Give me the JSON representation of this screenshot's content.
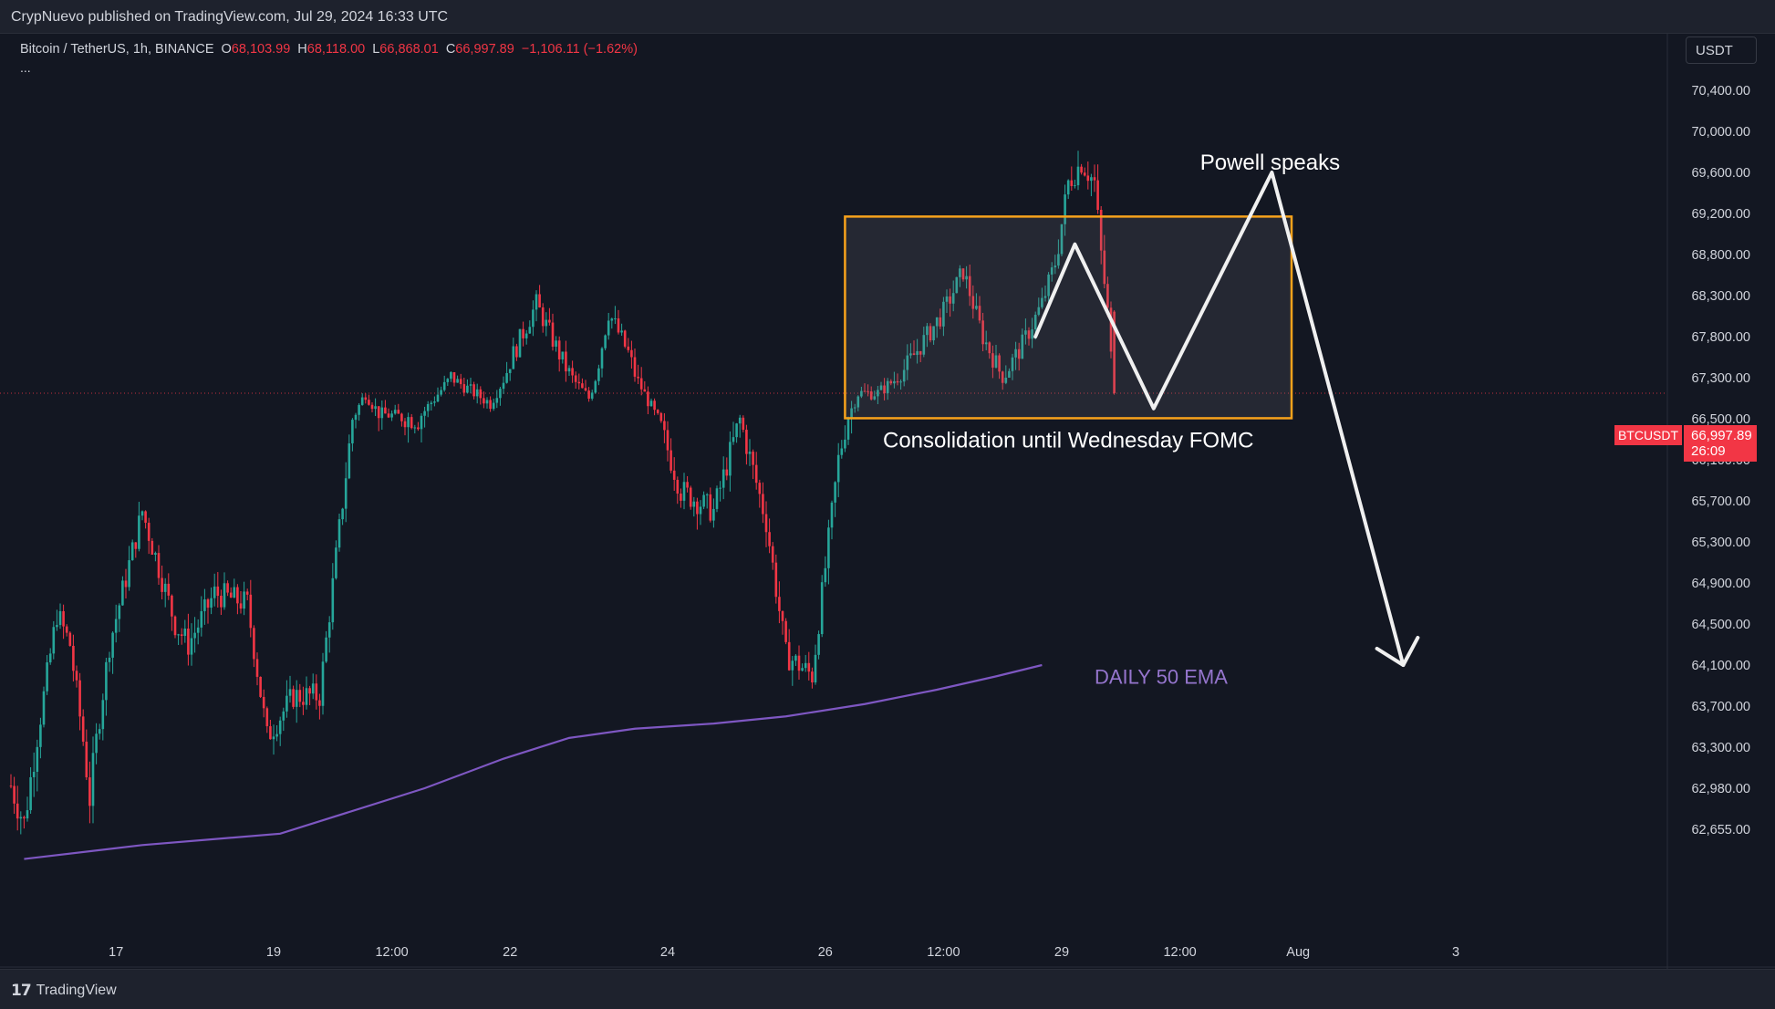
{
  "header": {
    "published": "CrypNuevo published on TradingView.com, Jul 29, 2024 16:33 UTC"
  },
  "legend": {
    "symbol": "Bitcoin / TetherUS, 1h, BINANCE",
    "o_label": "O",
    "o_value": "68,103.99",
    "h_label": "H",
    "h_value": "68,118.00",
    "l_label": "L",
    "l_value": "66,868.01",
    "c_label": "C",
    "c_value": "66,997.89",
    "change": "−1,106.11 (−1.62%)",
    "more": "..."
  },
  "currency_button": "USDT",
  "price_tag": {
    "symbol": "BTCUSDT",
    "price": "66,997.89",
    "countdown": "26:09"
  },
  "footer": {
    "logo_mark": "17",
    "logo_text": "TradingView"
  },
  "colors": {
    "up": "#26a69a",
    "down": "#f23645",
    "ema": "#7e57c2",
    "box": "#f7a21b",
    "bg": "#131722"
  },
  "chart_data": {
    "type": "candlestick",
    "symbol": "BTCUSDT",
    "interval": "1h",
    "y_ticks": [
      70400,
      70000,
      69600,
      69200,
      68800,
      68300,
      67800,
      67300,
      66500,
      66100,
      65700,
      65300,
      64900,
      64500,
      64100,
      63700,
      63300,
      62980,
      62655
    ],
    "y_tick_labels": [
      "70,400.00",
      "70,000.00",
      "69,600.00",
      "69,200.00",
      "68,800.00",
      "68,300.00",
      "67,800.00",
      "67,300.00",
      "66,500.00",
      "66,100.00",
      "65,700.00",
      "65,300.00",
      "64,900.00",
      "64,500.00",
      "64,100.00",
      "63,700.00",
      "63,300.00",
      "62,980.00",
      "62,655.00"
    ],
    "x_ticks": [
      {
        "label": "17",
        "t": 32
      },
      {
        "label": "19",
        "t": 80
      },
      {
        "label": "12:00",
        "t": 116
      },
      {
        "label": "22",
        "t": 152
      },
      {
        "label": "24",
        "t": 200
      },
      {
        "label": "26",
        "t": 248
      },
      {
        "label": "12:00",
        "t": 284
      },
      {
        "label": "29",
        "t": 320
      },
      {
        "label": "12:00",
        "t": 356
      },
      {
        "label": "Aug",
        "t": 392
      },
      {
        "label": "3",
        "t": 440
      }
    ],
    "price_path": [
      {
        "t": 0,
        "p": 63000
      },
      {
        "t": 4,
        "p": 62700
      },
      {
        "t": 8,
        "p": 63400
      },
      {
        "t": 14,
        "p": 64600
      },
      {
        "t": 18,
        "p": 64300
      },
      {
        "t": 24,
        "p": 62900
      },
      {
        "t": 30,
        "p": 64300
      },
      {
        "t": 40,
        "p": 65600
      },
      {
        "t": 50,
        "p": 64500
      },
      {
        "t": 54,
        "p": 64300
      },
      {
        "t": 62,
        "p": 64800
      },
      {
        "t": 72,
        "p": 64700
      },
      {
        "t": 78,
        "p": 63400
      },
      {
        "t": 86,
        "p": 63800
      },
      {
        "t": 94,
        "p": 63800
      },
      {
        "t": 104,
        "p": 66500
      },
      {
        "t": 108,
        "p": 67000
      },
      {
        "t": 112,
        "p": 66600
      },
      {
        "t": 124,
        "p": 66500
      },
      {
        "t": 134,
        "p": 67300
      },
      {
        "t": 146,
        "p": 66800
      },
      {
        "t": 152,
        "p": 67500
      },
      {
        "t": 160,
        "p": 68200
      },
      {
        "t": 168,
        "p": 67500
      },
      {
        "t": 176,
        "p": 66900
      },
      {
        "t": 182,
        "p": 68100
      },
      {
        "t": 188,
        "p": 67600
      },
      {
        "t": 196,
        "p": 66600
      },
      {
        "t": 204,
        "p": 65800
      },
      {
        "t": 214,
        "p": 65600
      },
      {
        "t": 222,
        "p": 66500
      },
      {
        "t": 230,
        "p": 65500
      },
      {
        "t": 236,
        "p": 64200
      },
      {
        "t": 244,
        "p": 64000
      },
      {
        "t": 252,
        "p": 66100
      },
      {
        "t": 258,
        "p": 67000
      },
      {
        "t": 264,
        "p": 67000
      },
      {
        "t": 272,
        "p": 67400
      },
      {
        "t": 284,
        "p": 68100
      },
      {
        "t": 290,
        "p": 68600
      },
      {
        "t": 296,
        "p": 67800
      },
      {
        "t": 302,
        "p": 67300
      },
      {
        "t": 308,
        "p": 67700
      },
      {
        "t": 314,
        "p": 68200
      },
      {
        "t": 318,
        "p": 68700
      },
      {
        "t": 322,
        "p": 69500
      },
      {
        "t": 326,
        "p": 69700
      },
      {
        "t": 330,
        "p": 69500
      },
      {
        "t": 334,
        "p": 68100
      },
      {
        "t": 336,
        "p": 66998
      }
    ],
    "ema": {
      "name": "DAILY 50 EMA",
      "points": [
        {
          "t": 4,
          "p": 62420
        },
        {
          "t": 40,
          "p": 62530
        },
        {
          "t": 82,
          "p": 62620
        },
        {
          "t": 126,
          "p": 62980
        },
        {
          "t": 150,
          "p": 63210
        },
        {
          "t": 170,
          "p": 63390
        },
        {
          "t": 190,
          "p": 63480
        },
        {
          "t": 214,
          "p": 63530
        },
        {
          "t": 236,
          "p": 63600
        },
        {
          "t": 260,
          "p": 63720
        },
        {
          "t": 282,
          "p": 63860
        },
        {
          "t": 300,
          "p": 63990
        },
        {
          "t": 314,
          "p": 64100
        }
      ]
    },
    "current_price": 66997.89,
    "annotations": {
      "box": {
        "t0": 254,
        "t1": 390,
        "p_top": 69170,
        "p_bottom": 66510
      },
      "box_label": "Consolidation until Wednesday FOMC",
      "projection": [
        {
          "t": 312,
          "p": 67800
        },
        {
          "t": 324,
          "p": 68900
        },
        {
          "t": 348,
          "p": 66700
        },
        {
          "t": 384,
          "p": 69600
        },
        {
          "t": 424,
          "p": 64100
        }
      ],
      "projection_label": "Powell speaks"
    }
  }
}
